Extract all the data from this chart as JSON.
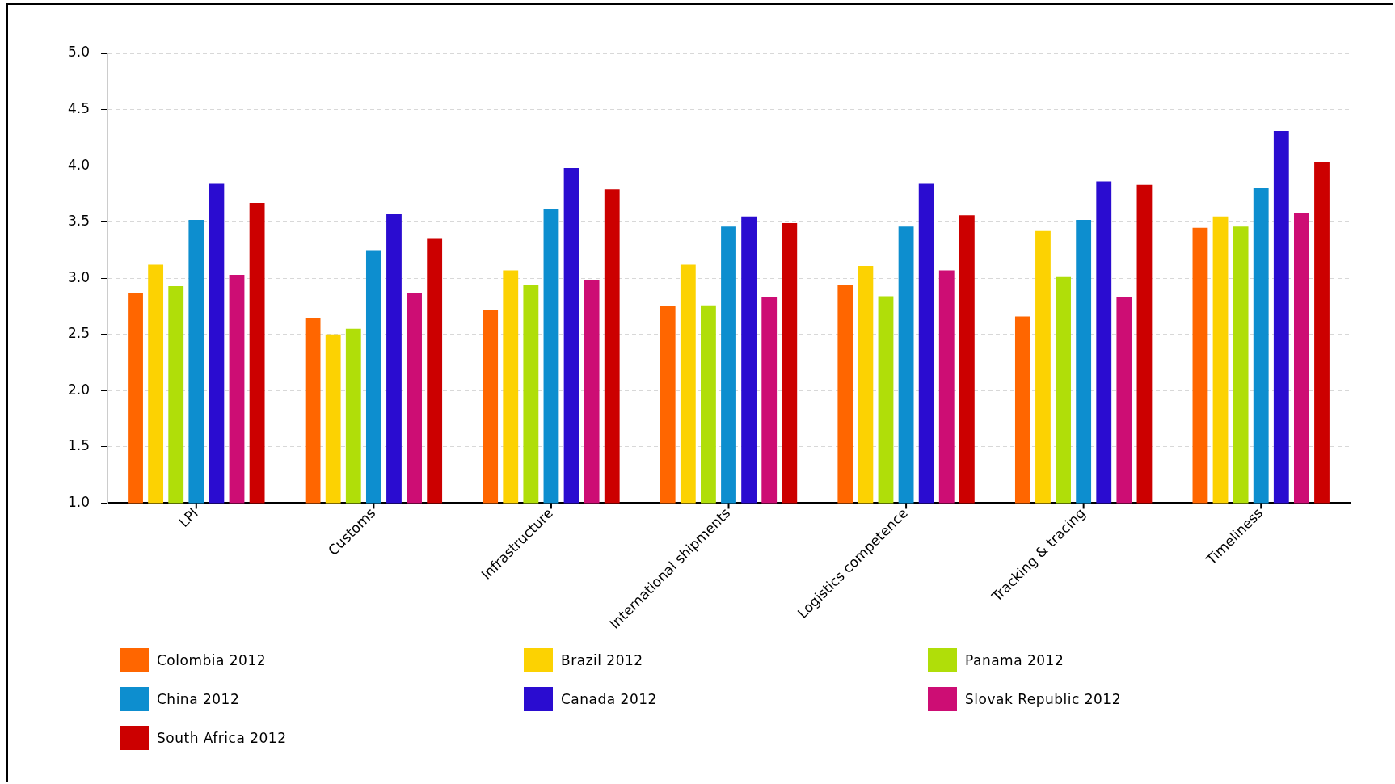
{
  "chart_data": {
    "type": "bar",
    "categories": [
      "LPI",
      "Customs",
      "Infrastructure",
      "International shipments",
      "Logistics competence",
      "Tracking & tracing",
      "Timeliness"
    ],
    "series": [
      {
        "name": "Colombia 2012",
        "color": "#ff6600",
        "values": [
          2.87,
          2.65,
          2.72,
          2.75,
          2.94,
          2.66,
          3.45
        ]
      },
      {
        "name": "Brazil 2012",
        "color": "#fcd202",
        "values": [
          3.12,
          2.5,
          3.07,
          3.12,
          3.11,
          3.42,
          3.55
        ]
      },
      {
        "name": "Panama 2012",
        "color": "#b0de09",
        "values": [
          2.93,
          2.55,
          2.94,
          2.76,
          2.84,
          3.01,
          3.46
        ]
      },
      {
        "name": "China 2012",
        "color": "#0d8ecf",
        "values": [
          3.52,
          3.25,
          3.62,
          3.46,
          3.46,
          3.52,
          3.8
        ]
      },
      {
        "name": "Canada 2012",
        "color": "#2a0cd0",
        "values": [
          3.84,
          3.57,
          3.98,
          3.55,
          3.84,
          3.86,
          4.31
        ]
      },
      {
        "name": "Slovak Republic 2012",
        "color": "#cd0d74",
        "values": [
          3.03,
          2.87,
          2.98,
          2.83,
          3.07,
          2.83,
          3.58
        ]
      },
      {
        "name": "South Africa 2012",
        "color": "#cc0000",
        "values": [
          3.67,
          3.35,
          3.79,
          3.49,
          3.56,
          3.83,
          4.03
        ]
      }
    ],
    "ylim": [
      1.0,
      5.0
    ],
    "yticks": [
      {
        "value": 1,
        "label": "1.0"
      },
      {
        "value": 1.5,
        "label": "1.5"
      },
      {
        "value": 2,
        "label": "2.0"
      },
      {
        "value": 2.5,
        "label": "2.5"
      },
      {
        "value": 3,
        "label": "3.0"
      },
      {
        "value": 3.5,
        "label": "3.5"
      },
      {
        "value": 4,
        "label": "4.0"
      },
      {
        "value": 4.5,
        "label": "4.5"
      },
      {
        "value": 5,
        "label": "5.0"
      }
    ],
    "grid": "y",
    "legend": "bottom"
  }
}
